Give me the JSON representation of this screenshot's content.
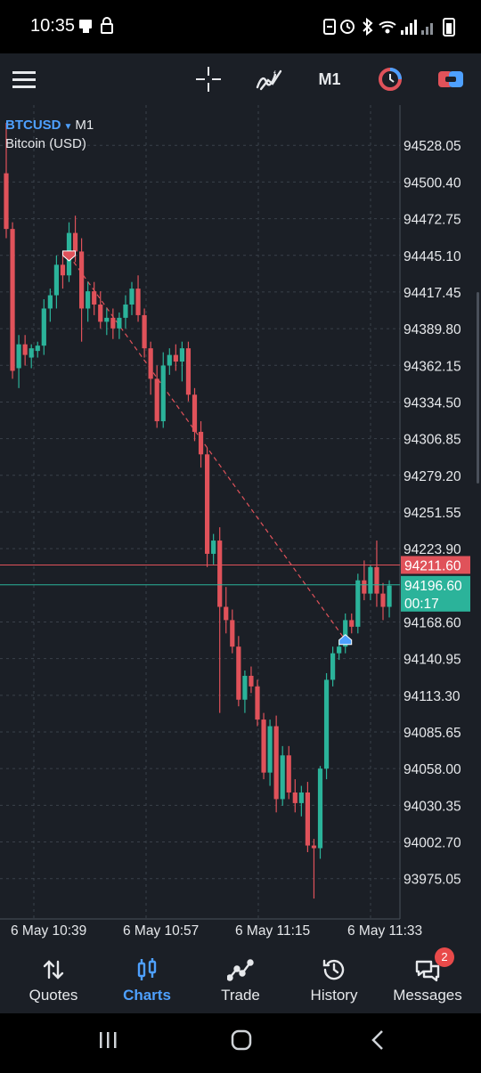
{
  "status_bar": {
    "time": "10:35"
  },
  "toolbar": {
    "timeframe": "M1",
    "icons": [
      "menu-icon",
      "crosshair-icon",
      "indicators-icon",
      "timeframe",
      "one-click-trading-icon",
      "trade-toggle-icon"
    ]
  },
  "symbol": {
    "name": "BTCUSD",
    "timeframe": "M1",
    "description": "Bitcoin (USD)"
  },
  "price_axis": {
    "labels": [
      "94528.05",
      "94500.40",
      "94472.75",
      "94445.10",
      "94417.45",
      "94389.80",
      "94362.15",
      "94334.50",
      "94306.85",
      "94279.20",
      "94251.55",
      "94223.90",
      "94168.60",
      "94140.95",
      "94113.30",
      "94085.65",
      "94058.00",
      "94030.35",
      "94002.70",
      "93975.05"
    ],
    "ask_price": "94211.60",
    "bid_price": "94196.60",
    "countdown": "00:17"
  },
  "time_axis": {
    "labels": [
      "6 May 10:39",
      "6 May 10:57",
      "6 May 11:15",
      "6 May 11:33"
    ]
  },
  "colors": {
    "background": "#1b1f26",
    "bull": "#2bb39a",
    "bear": "#e0525a",
    "ask_line": "#e0525a",
    "bid_line": "#2bb39a",
    "accent": "#4ea0ff"
  },
  "chart_data": {
    "type": "candlestick",
    "ylim": [
      93960,
      94545
    ],
    "candles": [
      {
        "o": 94507,
        "h": 94545,
        "l": 94458,
        "c": 94465
      },
      {
        "o": 94465,
        "h": 94470,
        "l": 94352,
        "c": 94358
      },
      {
        "o": 94360,
        "h": 94385,
        "l": 94345,
        "c": 94378
      },
      {
        "o": 94378,
        "h": 94385,
        "l": 94362,
        "c": 94370
      },
      {
        "o": 94368,
        "h": 94378,
        "l": 94360,
        "c": 94375
      },
      {
        "o": 94373,
        "h": 94380,
        "l": 94368,
        "c": 94377
      },
      {
        "o": 94377,
        "h": 94412,
        "l": 94370,
        "c": 94405
      },
      {
        "o": 94405,
        "h": 94420,
        "l": 94395,
        "c": 94415
      },
      {
        "o": 94415,
        "h": 94445,
        "l": 94405,
        "c": 94438
      },
      {
        "o": 94438,
        "h": 94448,
        "l": 94420,
        "c": 94430
      },
      {
        "o": 94430,
        "h": 94470,
        "l": 94425,
        "c": 94462
      },
      {
        "o": 94462,
        "h": 94475,
        "l": 94440,
        "c": 94448
      },
      {
        "o": 94448,
        "h": 94458,
        "l": 94380,
        "c": 94405
      },
      {
        "o": 94405,
        "h": 94425,
        "l": 94395,
        "c": 94418
      },
      {
        "o": 94418,
        "h": 94425,
        "l": 94400,
        "c": 94408
      },
      {
        "o": 94408,
        "h": 94418,
        "l": 94390,
        "c": 94395
      },
      {
        "o": 94395,
        "h": 94405,
        "l": 94385,
        "c": 94398
      },
      {
        "o": 94398,
        "h": 94405,
        "l": 94382,
        "c": 94390
      },
      {
        "o": 94390,
        "h": 94402,
        "l": 94382,
        "c": 94398
      },
      {
        "o": 94398,
        "h": 94415,
        "l": 94390,
        "c": 94408
      },
      {
        "o": 94408,
        "h": 94425,
        "l": 94400,
        "c": 94420
      },
      {
        "o": 94420,
        "h": 94430,
        "l": 94395,
        "c": 94400
      },
      {
        "o": 94400,
        "h": 94405,
        "l": 94368,
        "c": 94375
      },
      {
        "o": 94375,
        "h": 94380,
        "l": 94340,
        "c": 94352
      },
      {
        "o": 94352,
        "h": 94362,
        "l": 94315,
        "c": 94320
      },
      {
        "o": 94320,
        "h": 94372,
        "l": 94315,
        "c": 94362
      },
      {
        "o": 94362,
        "h": 94375,
        "l": 94355,
        "c": 94370
      },
      {
        "o": 94370,
        "h": 94378,
        "l": 94358,
        "c": 94365
      },
      {
        "o": 94365,
        "h": 94380,
        "l": 94350,
        "c": 94375
      },
      {
        "o": 94375,
        "h": 94380,
        "l": 94335,
        "c": 94340
      },
      {
        "o": 94340,
        "h": 94345,
        "l": 94305,
        "c": 94312
      },
      {
        "o": 94312,
        "h": 94320,
        "l": 94285,
        "c": 94295
      },
      {
        "o": 94295,
        "h": 94300,
        "l": 94210,
        "c": 94220
      },
      {
        "o": 94220,
        "h": 94235,
        "l": 94212,
        "c": 94230
      },
      {
        "o": 94230,
        "h": 94240,
        "l": 94100,
        "c": 94180
      },
      {
        "o": 94180,
        "h": 94195,
        "l": 94160,
        "c": 94170
      },
      {
        "o": 94170,
        "h": 94178,
        "l": 94145,
        "c": 94150
      },
      {
        "o": 94150,
        "h": 94158,
        "l": 94105,
        "c": 94110
      },
      {
        "o": 94110,
        "h": 94132,
        "l": 94100,
        "c": 94128
      },
      {
        "o": 94128,
        "h": 94135,
        "l": 94115,
        "c": 94120
      },
      {
        "o": 94120,
        "h": 94125,
        "l": 94090,
        "c": 94095
      },
      {
        "o": 94095,
        "h": 94100,
        "l": 94050,
        "c": 94055
      },
      {
        "o": 94055,
        "h": 94095,
        "l": 94045,
        "c": 94090
      },
      {
        "o": 94090,
        "h": 94098,
        "l": 94025,
        "c": 94035
      },
      {
        "o": 94035,
        "h": 94075,
        "l": 94030,
        "c": 94068
      },
      {
        "o": 94068,
        "h": 94075,
        "l": 94035,
        "c": 94040
      },
      {
        "o": 94040,
        "h": 94050,
        "l": 94025,
        "c": 94032
      },
      {
        "o": 94032,
        "h": 94045,
        "l": 94022,
        "c": 94040
      },
      {
        "o": 94040,
        "h": 94048,
        "l": 93995,
        "c": 94000
      },
      {
        "o": 94000,
        "h": 94005,
        "l": 93960,
        "c": 93998
      },
      {
        "o": 93998,
        "h": 94060,
        "l": 93990,
        "c": 94058
      },
      {
        "o": 94058,
        "h": 94130,
        "l": 94050,
        "c": 94125
      },
      {
        "o": 94125,
        "h": 94150,
        "l": 94120,
        "c": 94145
      },
      {
        "o": 94145,
        "h": 94155,
        "l": 94140,
        "c": 94150
      },
      {
        "o": 94150,
        "h": 94175,
        "l": 94145,
        "c": 94170
      },
      {
        "o": 94170,
        "h": 94175,
        "l": 94160,
        "c": 94165
      },
      {
        "o": 94165,
        "h": 94205,
        "l": 94160,
        "c": 94200
      },
      {
        "o": 94200,
        "h": 94215,
        "l": 94185,
        "c": 94190
      },
      {
        "o": 94190,
        "h": 94212,
        "l": 94185,
        "c": 94210
      },
      {
        "o": 94210,
        "h": 94230,
        "l": 94180,
        "c": 94190
      },
      {
        "o": 94190,
        "h": 94198,
        "l": 94170,
        "c": 94180
      },
      {
        "o": 94180,
        "h": 94200,
        "l": 94172,
        "c": 94196
      }
    ],
    "trend_line": {
      "from": {
        "candle": 10,
        "price": 94445
      },
      "to": {
        "candle": 54,
        "price": 94155
      }
    },
    "sell_marker": {
      "candle": 10,
      "price": 94445
    },
    "buy_marker": {
      "candle": 54,
      "price": 94155
    }
  },
  "bottom_nav": {
    "items": [
      {
        "label": "Quotes",
        "icon": "quotes-icon"
      },
      {
        "label": "Charts",
        "icon": "charts-icon"
      },
      {
        "label": "Trade",
        "icon": "trade-icon"
      },
      {
        "label": "History",
        "icon": "history-icon"
      },
      {
        "label": "Messages",
        "icon": "messages-icon"
      }
    ],
    "messages_badge": "2"
  }
}
